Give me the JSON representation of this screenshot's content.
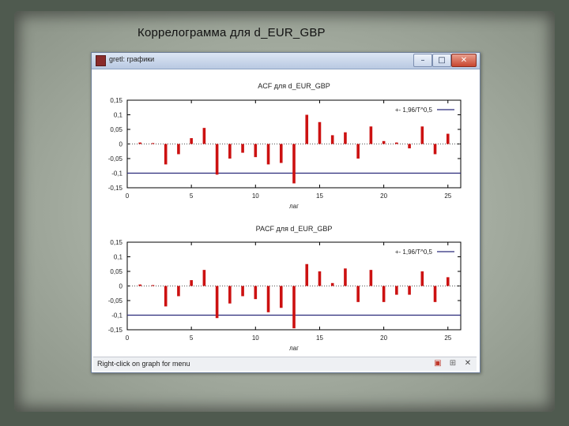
{
  "slide": {
    "title": "Коррелограмма для d_EUR_GBP"
  },
  "window": {
    "title": "gretl: графики",
    "buttons": {
      "minimize": "–",
      "maximize": "□",
      "close": "✕"
    },
    "status": "Right-click on graph for menu"
  },
  "colors": {
    "bar": "#cc1111",
    "band": "#2a2a7a",
    "axis": "#000000"
  },
  "chart_data": [
    {
      "type": "bar",
      "title": "ACF для d_EUR_GBP",
      "xlabel": "лаг",
      "legend": "+- 1,96/T^0,5",
      "legend_position": "top-right",
      "band": [
        -0.1,
        0.1
      ],
      "xlim": [
        0,
        26
      ],
      "ylim": [
        -0.15,
        0.15
      ],
      "yticks": [
        "0,15",
        "0,1",
        "0,05",
        "0",
        "-0,05",
        "-0,1",
        "-0,15"
      ],
      "ytick_values": [
        0.15,
        0.1,
        0.05,
        0,
        -0.05,
        -0.1,
        -0.15
      ],
      "xticks": [
        0,
        5,
        10,
        15,
        20,
        25
      ],
      "x": [
        1,
        2,
        3,
        4,
        5,
        6,
        7,
        8,
        9,
        10,
        11,
        12,
        13,
        14,
        15,
        16,
        17,
        18,
        19,
        20,
        21,
        22,
        23,
        24,
        25
      ],
      "values": [
        0.005,
        0.003,
        -0.07,
        -0.035,
        0.02,
        0.055,
        -0.105,
        -0.05,
        -0.03,
        -0.045,
        -0.07,
        -0.065,
        -0.135,
        0.1,
        0.075,
        0.03,
        0.04,
        -0.05,
        0.06,
        0.01,
        0.005,
        -0.015,
        0.06,
        -0.035,
        0.035
      ]
    },
    {
      "type": "bar",
      "title": "PACF для d_EUR_GBP",
      "xlabel": "лаг",
      "legend": "+- 1,96/T^0,5",
      "legend_position": "top-right",
      "band": [
        -0.1,
        0.1
      ],
      "xlim": [
        0,
        26
      ],
      "ylim": [
        -0.15,
        0.15
      ],
      "yticks": [
        "0,15",
        "0,1",
        "0,05",
        "0",
        "-0,05",
        "-0,1",
        "-0,15"
      ],
      "ytick_values": [
        0.15,
        0.1,
        0.05,
        0,
        -0.05,
        -0.1,
        -0.15
      ],
      "xticks": [
        0,
        5,
        10,
        15,
        20,
        25
      ],
      "x": [
        1,
        2,
        3,
        4,
        5,
        6,
        7,
        8,
        9,
        10,
        11,
        12,
        13,
        14,
        15,
        16,
        17,
        18,
        19,
        20,
        21,
        22,
        23,
        24,
        25
      ],
      "values": [
        0.005,
        0.003,
        -0.07,
        -0.035,
        0.02,
        0.055,
        -0.11,
        -0.06,
        -0.035,
        -0.045,
        -0.09,
        -0.075,
        -0.145,
        0.075,
        0.05,
        0.01,
        0.06,
        -0.055,
        0.055,
        -0.055,
        -0.03,
        -0.03,
        0.05,
        -0.055,
        0.03
      ]
    }
  ]
}
